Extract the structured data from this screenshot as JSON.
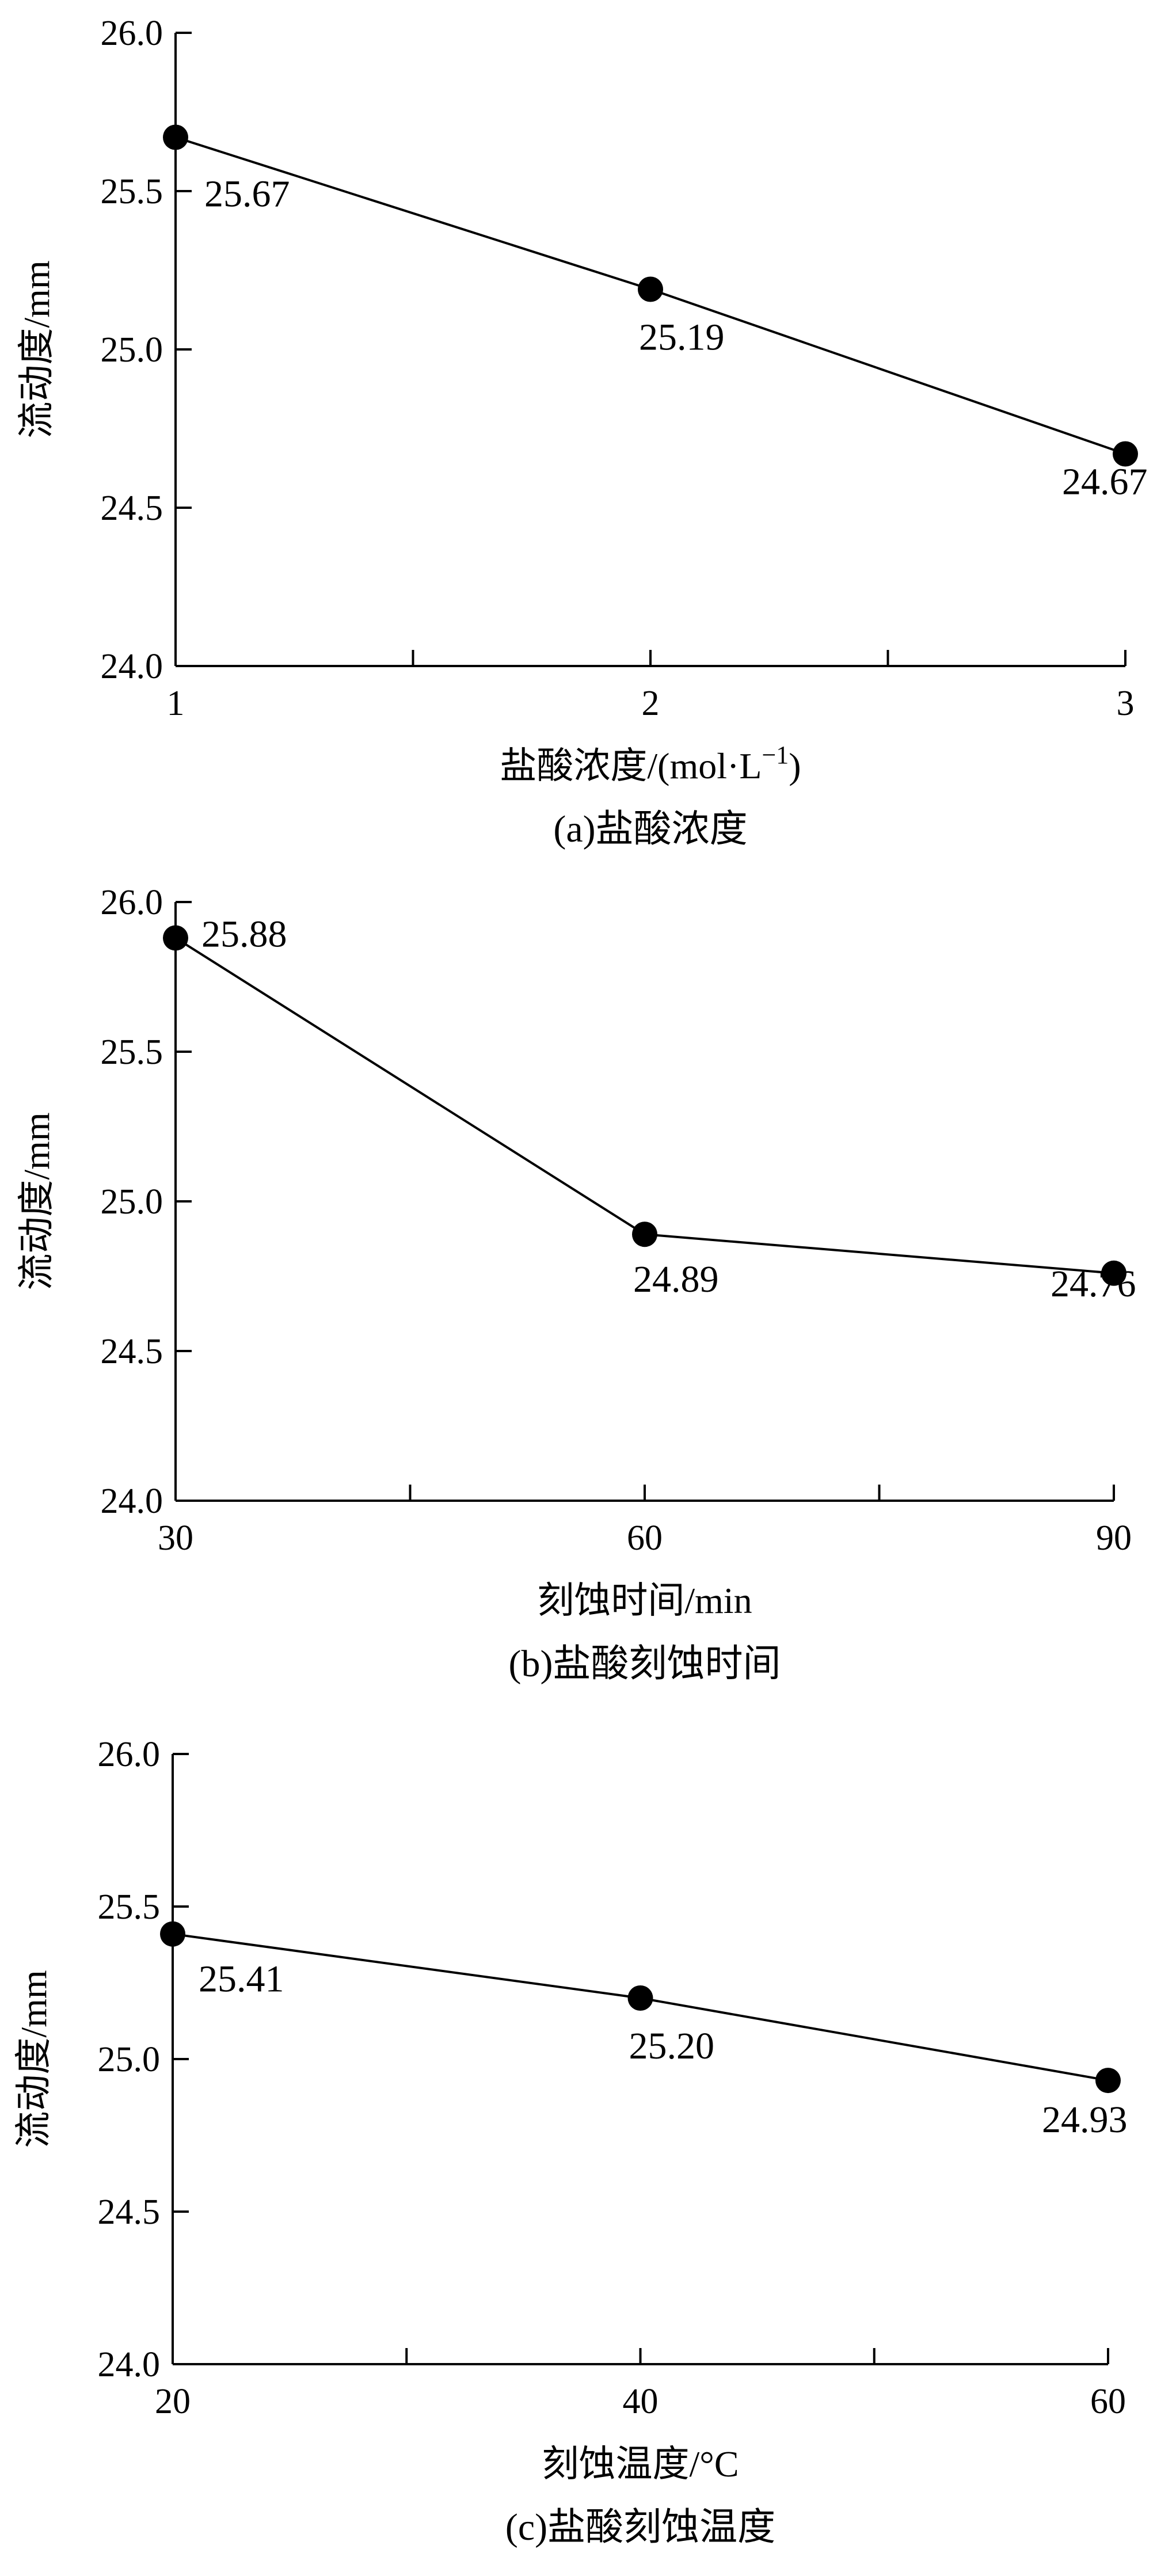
{
  "chart_data": [
    {
      "type": "line",
      "caption": "(a)盐酸浓度",
      "xlabel": "盐酸浓度/(mol·L",
      "xlabel_sup": "−1",
      "xlabel_suffix": ")",
      "ylabel": "流动度/mm",
      "x": [
        1,
        2,
        3
      ],
      "y": [
        25.67,
        25.19,
        24.67
      ],
      "data_labels": [
        "25.67",
        "25.19",
        "24.67"
      ],
      "xlim": [
        1,
        3
      ],
      "ylim": [
        24.0,
        26.0
      ],
      "xticks": [
        1,
        1.5,
        2,
        2.5,
        3
      ],
      "xtick_labels": [
        "1",
        "",
        "2",
        "",
        "3"
      ],
      "yticks": [
        24.0,
        24.5,
        25.0,
        25.5,
        26.0
      ],
      "ytick_labels": [
        "24.0",
        "24.5",
        "25.0",
        "25.5",
        "26.0"
      ],
      "grid": false
    },
    {
      "type": "line",
      "caption": "(b)盐酸刻蚀时间",
      "xlabel": "刻蚀时间/min",
      "ylabel": "流动度/mm",
      "x": [
        30,
        60,
        90
      ],
      "y": [
        25.88,
        24.89,
        24.76
      ],
      "data_labels": [
        "25.88",
        "24.89",
        "24.76"
      ],
      "xlim": [
        30,
        90
      ],
      "ylim": [
        24.0,
        26.0
      ],
      "xticks": [
        30,
        45,
        60,
        75,
        90
      ],
      "xtick_labels": [
        "30",
        "",
        "60",
        "",
        "90"
      ],
      "yticks": [
        24.0,
        24.5,
        25.0,
        25.5,
        26.0
      ],
      "ytick_labels": [
        "24.0",
        "24.5",
        "25.0",
        "25.5",
        "26.0"
      ],
      "grid": false
    },
    {
      "type": "line",
      "caption": "(c)盐酸刻蚀温度",
      "xlabel": "刻蚀温度/°C",
      "ylabel": "流动度/mm",
      "x": [
        20,
        40,
        60
      ],
      "y": [
        25.41,
        25.2,
        24.93
      ],
      "data_labels": [
        "25.41",
        "25.20",
        "24.93"
      ],
      "xlim": [
        20,
        60
      ],
      "ylim": [
        24.0,
        26.0
      ],
      "xticks": [
        20,
        30,
        40,
        50,
        60
      ],
      "xtick_labels": [
        "20",
        "",
        "40",
        "",
        "60"
      ],
      "yticks": [
        24.0,
        24.5,
        25.0,
        25.5,
        26.0
      ],
      "ytick_labels": [
        "24.0",
        "24.5",
        "25.0",
        "25.5",
        "26.0"
      ],
      "grid": false
    }
  ]
}
